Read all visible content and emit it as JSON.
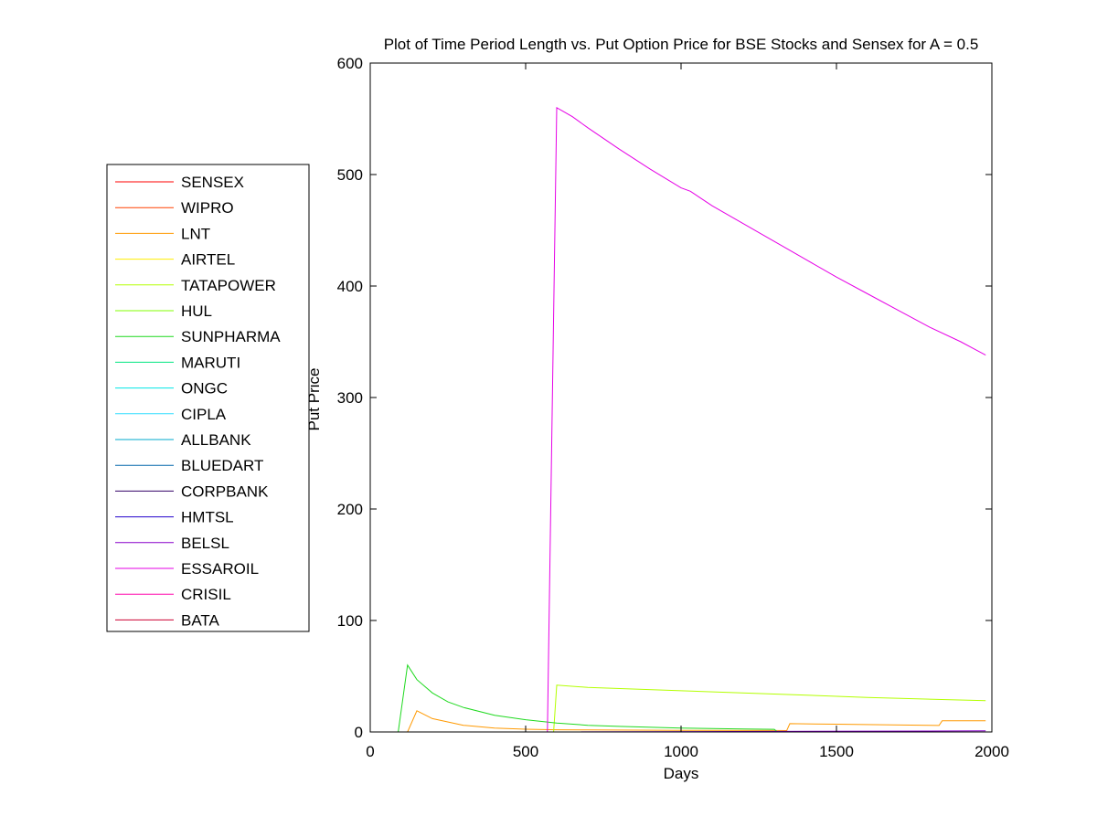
{
  "chart_data": {
    "type": "line",
    "title": "Plot of Time Period Length vs. Put Option Price for BSE Stocks and Sensex for A = 0.5",
    "xlabel": "Days",
    "ylabel": "Put Price",
    "xlim": [
      0,
      2000
    ],
    "ylim": [
      0,
      600
    ],
    "xticks": [
      0,
      500,
      1000,
      1500,
      2000
    ],
    "yticks": [
      0,
      100,
      200,
      300,
      400,
      500,
      600
    ],
    "grid": false,
    "legend_position": "left",
    "series": [
      {
        "name": "SENSEX",
        "color": "#ff0000",
        "x": [
          30,
          1980
        ],
        "y": [
          0,
          0
        ]
      },
      {
        "name": "WIPRO",
        "color": "#ff4000",
        "x": [
          30,
          1980
        ],
        "y": [
          0,
          0
        ]
      },
      {
        "name": "LNT",
        "color": "#ff9900",
        "x": [
          30,
          120,
          150,
          200,
          300,
          400,
          500,
          600,
          700,
          1000,
          1300,
          1340,
          1350,
          1500,
          1800,
          1830,
          1840,
          1980
        ],
        "y": [
          0,
          0,
          19,
          12,
          6,
          3.5,
          2.5,
          2,
          1.8,
          1.5,
          1.3,
          1.2,
          7.5,
          7,
          6,
          5.8,
          10,
          10
        ]
      },
      {
        "name": "AIRTEL",
        "color": "#ffee00",
        "x": [
          30,
          1980
        ],
        "y": [
          0,
          0
        ]
      },
      {
        "name": "TATAPOWER",
        "color": "#b3ff00",
        "x": [
          30,
          590,
          600,
          700,
          1000,
          1300,
          1600,
          1980
        ],
        "y": [
          0,
          0,
          42,
          40,
          37,
          34,
          31,
          28
        ]
      },
      {
        "name": "HUL",
        "color": "#80ff00",
        "x": [
          30,
          1980
        ],
        "y": [
          0,
          0
        ]
      },
      {
        "name": "SUNPHARMA",
        "color": "#1fd91f",
        "x": [
          30,
          90,
          120,
          150,
          200,
          250,
          300,
          400,
          500,
          600,
          700,
          800,
          1000,
          1200,
          1300,
          1310,
          1980
        ],
        "y": [
          0,
          0,
          60,
          47,
          35,
          27,
          22,
          15,
          11,
          8,
          6,
          5,
          3.5,
          2.6,
          2.4,
          0,
          0
        ]
      },
      {
        "name": "MARUTI",
        "color": "#00e680",
        "x": [
          30,
          1980
        ],
        "y": [
          0,
          0
        ]
      },
      {
        "name": "ONGC",
        "color": "#00e6e6",
        "x": [
          30,
          1980
        ],
        "y": [
          0,
          0
        ]
      },
      {
        "name": "CIPLA",
        "color": "#33ddff",
        "x": [
          30,
          1980
        ],
        "y": [
          0,
          0
        ]
      },
      {
        "name": "ALLBANK",
        "color": "#00aacc",
        "x": [
          30,
          1980
        ],
        "y": [
          0,
          0
        ]
      },
      {
        "name": "BLUEDART",
        "color": "#0066aa",
        "x": [
          30,
          1980
        ],
        "y": [
          0,
          0
        ]
      },
      {
        "name": "CORPBANK",
        "color": "#330066",
        "x": [
          30,
          1980
        ],
        "y": [
          0,
          0
        ]
      },
      {
        "name": "HMTSL",
        "color": "#2200cc",
        "x": [
          30,
          1980
        ],
        "y": [
          0,
          0
        ]
      },
      {
        "name": "BELSL",
        "color": "#8800cc",
        "x": [
          30,
          560,
          1980
        ],
        "y": [
          0,
          0,
          1
        ]
      },
      {
        "name": "ESSAROIL",
        "color": "#e600e6",
        "x": [
          30,
          570,
          600,
          650,
          700,
          800,
          900,
          1000,
          1030,
          1100,
          1200,
          1300,
          1400,
          1500,
          1600,
          1700,
          1800,
          1900,
          1980
        ],
        "y": [
          0,
          0,
          560,
          552,
          542,
          523,
          505,
          488,
          485,
          472,
          456,
          440,
          424,
          408,
          393,
          378,
          363,
          350,
          338
        ]
      },
      {
        "name": "CRISIL",
        "color": "#ff00aa",
        "x": [
          30,
          1980
        ],
        "y": [
          0,
          0
        ]
      },
      {
        "name": "BATA",
        "color": "#cc0033",
        "x": [
          30,
          1980
        ],
        "y": [
          0,
          0
        ]
      }
    ]
  }
}
